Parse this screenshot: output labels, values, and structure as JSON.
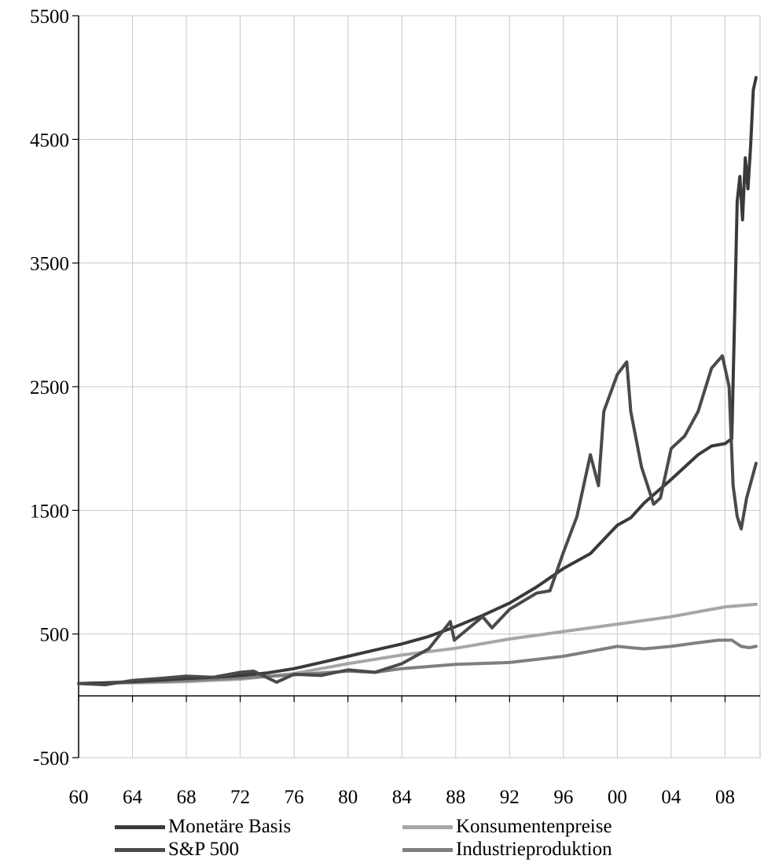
{
  "chart_data": {
    "type": "line",
    "title": "",
    "xlabel": "",
    "ylabel": "",
    "xlim": [
      1960,
      2010.6
    ],
    "ylim": [
      -500,
      5500
    ],
    "y_ticks": [
      -500,
      500,
      1500,
      2500,
      3500,
      4500,
      5500
    ],
    "y_tick_labels": [
      "-500",
      "500",
      "1500",
      "2500",
      "3500",
      "4500",
      "5500"
    ],
    "x_ticks": [
      1960,
      1964,
      1968,
      1972,
      1976,
      1980,
      1984,
      1988,
      1992,
      1996,
      2000,
      2004,
      2008
    ],
    "x_tick_labels": [
      "60",
      "64",
      "68",
      "72",
      "76",
      "80",
      "84",
      "88",
      "92",
      "96",
      "00",
      "04",
      "08"
    ],
    "grid": true,
    "legend_position": "bottom",
    "series": [
      {
        "name": "Monetäre Basis",
        "color": "#3a3a3a",
        "x": [
          1960,
          1962,
          1964,
          1966,
          1968,
          1970,
          1972,
          1974,
          1976,
          1978,
          1980,
          1982,
          1984,
          1986,
          1988,
          1990,
          1992,
          1994,
          1996,
          1998,
          2000,
          2001,
          2002,
          2004,
          2006,
          2007,
          2008,
          2008.5,
          2008.7,
          2008.9,
          2009.1,
          2009.3,
          2009.5,
          2009.7,
          2009.9,
          2010.1,
          2010.3
        ],
        "y": [
          100,
          105,
          115,
          128,
          140,
          150,
          165,
          185,
          220,
          270,
          320,
          370,
          420,
          480,
          560,
          650,
          750,
          880,
          1030,
          1150,
          1380,
          1440,
          1560,
          1750,
          1950,
          2020,
          2040,
          2080,
          3000,
          4000,
          4200,
          3850,
          4350,
          4100,
          4450,
          4900,
          5000
        ]
      },
      {
        "name": "S&P 500",
        "color": "#4a4a4a",
        "x": [
          1960,
          1962,
          1964,
          1966,
          1968,
          1970,
          1972,
          1973,
          1974.7,
          1976,
          1978,
          1980,
          1982,
          1984,
          1986,
          1987.6,
          1987.9,
          1990,
          1990.7,
          1992,
          1994,
          1995,
          1996,
          1997,
          1998,
          1998.6,
          1999,
          2000,
          2000.7,
          2001,
          2001.8,
          2002.7,
          2003.2,
          2004,
          2005,
          2006,
          2007,
          2007.8,
          2008.3,
          2008.6,
          2008.9,
          2009.2,
          2009.6,
          2010.3
        ],
        "y": [
          100,
          90,
          125,
          140,
          160,
          150,
          190,
          200,
          110,
          175,
          165,
          210,
          190,
          260,
          380,
          600,
          450,
          640,
          550,
          700,
          830,
          850,
          1160,
          1450,
          1950,
          1700,
          2300,
          2600,
          2700,
          2300,
          1850,
          1550,
          1600,
          2000,
          2100,
          2300,
          2650,
          2750,
          2500,
          1700,
          1450,
          1350,
          1600,
          1880
        ]
      },
      {
        "name": "Konsumentenpreise",
        "color": "#a6a6a6",
        "x": [
          1960,
          1964,
          1968,
          1972,
          1976,
          1980,
          1984,
          1988,
          1992,
          1996,
          2000,
          2004,
          2008,
          2010.3
        ],
        "y": [
          100,
          105,
          115,
          135,
          180,
          260,
          330,
          385,
          460,
          520,
          580,
          640,
          720,
          740
        ]
      },
      {
        "name": "Industrieproduktion",
        "color": "#7f7f7f",
        "x": [
          1960,
          1964,
          1968,
          1972,
          1976,
          1980,
          1982,
          1984,
          1988,
          1992,
          1996,
          2000,
          2001,
          2002,
          2004,
          2006,
          2007.5,
          2008.5,
          2009.2,
          2009.8,
          2010.3
        ],
        "y": [
          100,
          110,
          125,
          145,
          170,
          200,
          190,
          220,
          255,
          270,
          320,
          400,
          390,
          380,
          400,
          430,
          450,
          450,
          400,
          390,
          400
        ]
      }
    ]
  }
}
